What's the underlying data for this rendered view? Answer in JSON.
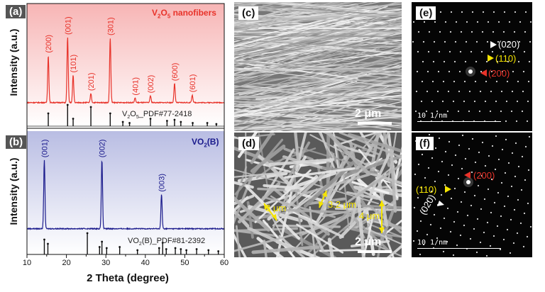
{
  "figure": {
    "panels": {
      "a": {
        "letter": "(a)",
        "title": "V₂O₅ nanofibers",
        "title_color": "#e8332a",
        "ref": "V₂O₅_PDF#77-2418"
      },
      "b": {
        "letter": "(b)",
        "title": "VO₂(B)",
        "title_color": "#1a1a8c",
        "ref": "VO₂(B)_PDF#81-2392"
      },
      "c": {
        "letter": "(c)",
        "scale": "2 μm"
      },
      "d": {
        "letter": "(d)",
        "scale": "2 μm",
        "measures": [
          "3 μm",
          "3.2 μm",
          "4 μm"
        ]
      },
      "e": {
        "letter": "(e)",
        "scale": "10 1/nm",
        "labels": [
          "(020)",
          "(110)",
          "(200)"
        ]
      },
      "f": {
        "letter": "(f)",
        "scale": "10 1/nm",
        "labels": [
          "(200)",
          "(110)",
          "(020)"
        ]
      }
    },
    "colors": {
      "red": "#e8332a",
      "navy": "#1a1a8c",
      "yellow": "#f5e400",
      "white": "#ffffff"
    },
    "icons": [
      "white-triangle-marker",
      "yellow-triangle-marker",
      "red-triangle-marker"
    ]
  },
  "chart_data": [
    {
      "type": "line",
      "panel": "a",
      "series": [
        {
          "name": "V₂O₅ nanofibers",
          "color": "#e8332a"
        }
      ],
      "peaks": [
        {
          "x": 15.4,
          "y": 0.62,
          "label": "(200)"
        },
        {
          "x": 20.3,
          "y": 0.86,
          "label": "(001)"
        },
        {
          "x": 21.7,
          "y": 0.36,
          "label": "(101)"
        },
        {
          "x": 26.2,
          "y": 0.12,
          "label": "(201)"
        },
        {
          "x": 31.1,
          "y": 0.85,
          "label": "(301)"
        },
        {
          "x": 37.4,
          "y": 0.06,
          "label": "(401)"
        },
        {
          "x": 41.3,
          "y": 0.09,
          "label": "(002)"
        },
        {
          "x": 47.4,
          "y": 0.25,
          "label": "(600)"
        },
        {
          "x": 51.9,
          "y": 0.1,
          "label": "(601)"
        }
      ],
      "reference_lines": [
        {
          "x": 15.4,
          "h": 0.6
        },
        {
          "x": 20.3,
          "h": 1.0
        },
        {
          "x": 21.7,
          "h": 0.35
        },
        {
          "x": 26.2,
          "h": 0.9
        },
        {
          "x": 31.1,
          "h": 0.6
        },
        {
          "x": 34.3,
          "h": 0.2
        },
        {
          "x": 36.0,
          "h": 0.15
        },
        {
          "x": 41.3,
          "h": 0.35
        },
        {
          "x": 45.5,
          "h": 0.25
        },
        {
          "x": 47.4,
          "h": 0.3
        },
        {
          "x": 49.0,
          "h": 0.2
        },
        {
          "x": 52.0,
          "h": 0.15
        },
        {
          "x": 55.7,
          "h": 0.15
        },
        {
          "x": 58.0,
          "h": 0.1
        }
      ],
      "ylabel": "Intensity (a.u.)",
      "xlim": [
        10,
        60
      ]
    },
    {
      "type": "line",
      "panel": "b",
      "series": [
        {
          "name": "VO₂(B)",
          "color": "#1a1a8c"
        }
      ],
      "peaks": [
        {
          "x": 14.4,
          "y": 0.88,
          "label": "(001)"
        },
        {
          "x": 29.0,
          "y": 0.88,
          "label": "(002)"
        },
        {
          "x": 44.1,
          "y": 0.44,
          "label": "(003)"
        }
      ],
      "reference_lines": [
        {
          "x": 14.4,
          "h": 0.7
        },
        {
          "x": 15.3,
          "h": 0.5
        },
        {
          "x": 25.3,
          "h": 1.0
        },
        {
          "x": 28.4,
          "h": 0.35
        },
        {
          "x": 29.0,
          "h": 0.6
        },
        {
          "x": 30.2,
          "h": 0.3
        },
        {
          "x": 33.5,
          "h": 0.35
        },
        {
          "x": 38.0,
          "h": 0.2
        },
        {
          "x": 43.5,
          "h": 0.3
        },
        {
          "x": 44.4,
          "h": 0.55
        },
        {
          "x": 45.3,
          "h": 0.25
        },
        {
          "x": 47.6,
          "h": 0.3
        },
        {
          "x": 49.0,
          "h": 0.25
        },
        {
          "x": 50.4,
          "h": 0.2
        },
        {
          "x": 53.0,
          "h": 0.25
        },
        {
          "x": 56.0,
          "h": 0.2
        },
        {
          "x": 58.5,
          "h": 0.15
        }
      ],
      "ylabel": "Intensity (a.u.)",
      "xlabel": "2 Theta (degree)",
      "xlim": [
        10,
        60
      ],
      "xticks": [
        "10",
        "20",
        "30",
        "40",
        "50",
        "60"
      ]
    }
  ]
}
